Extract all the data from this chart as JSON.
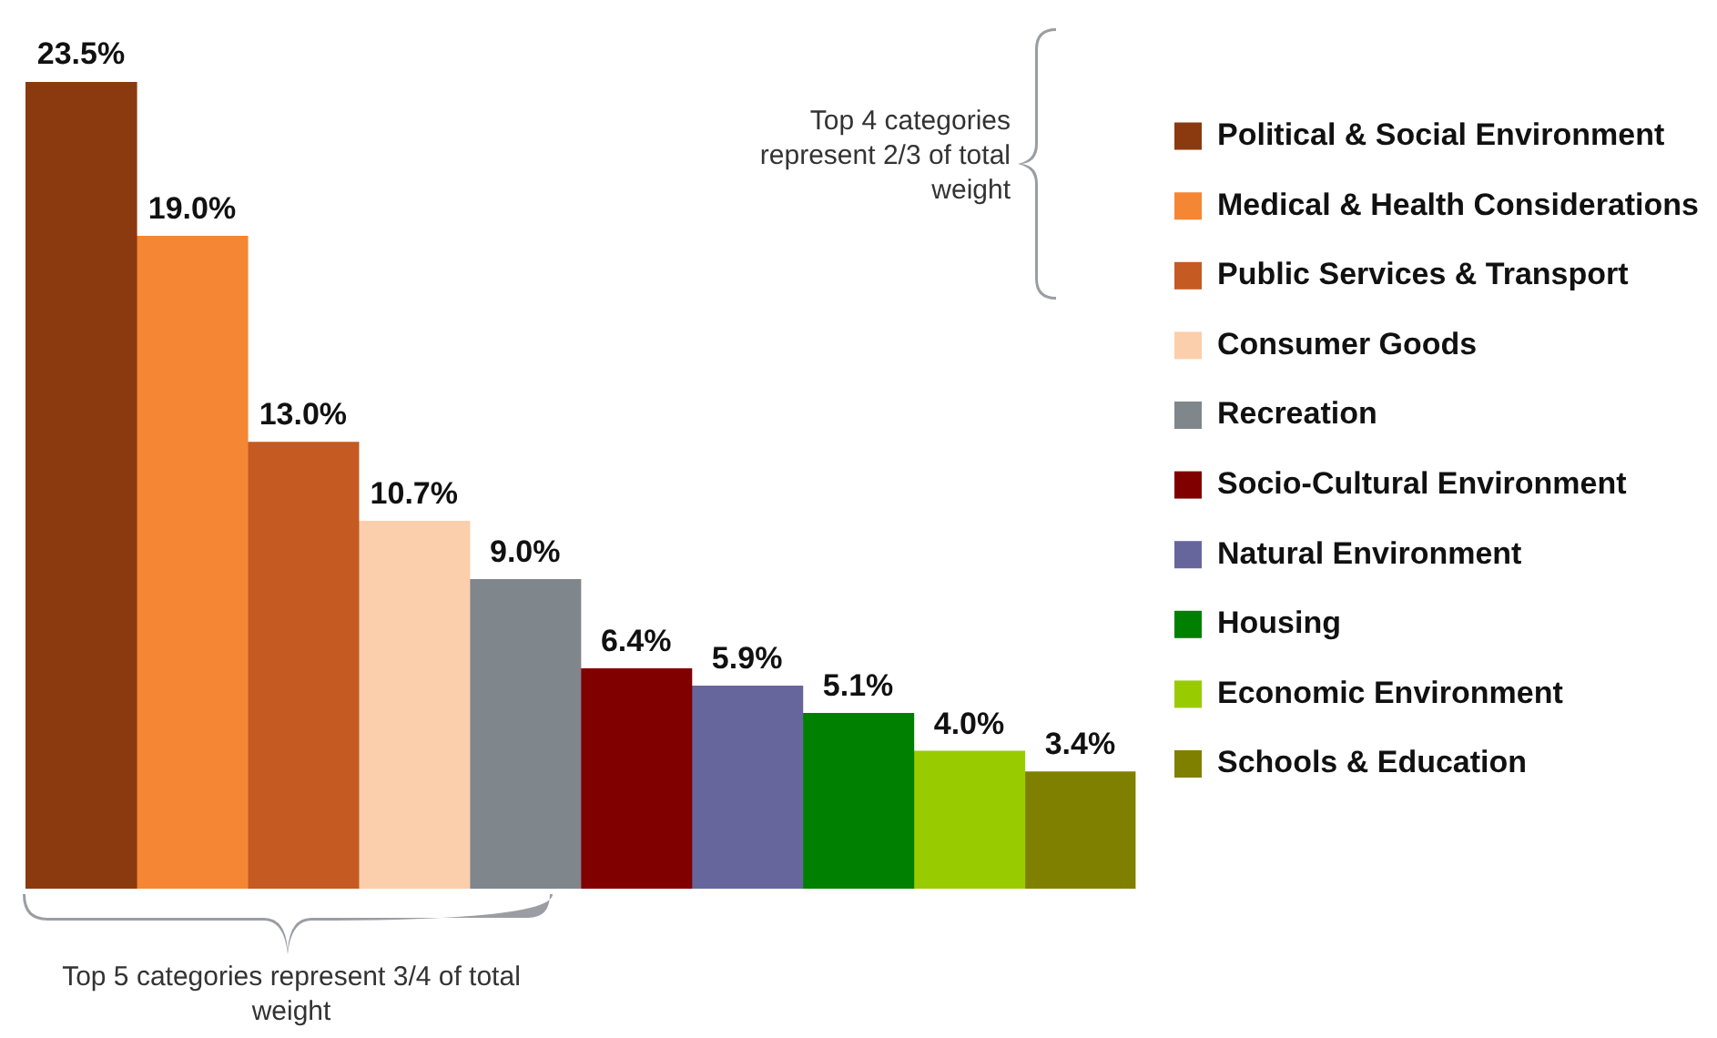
{
  "chart_data": {
    "type": "bar",
    "categories": [
      null
    ],
    "series": [
      {
        "name": "Political & Social Environment",
        "color": "#8b3a0f",
        "values": [
          23.5
        ],
        "value_labels": [
          "23.5%"
        ]
      },
      {
        "name": "Medical & Health Considerations",
        "color": "#f58634",
        "values": [
          19.0
        ],
        "value_labels": [
          "19.0%"
        ]
      },
      {
        "name": "Public Services & Transport",
        "color": "#c55a22",
        "values": [
          13.0
        ],
        "value_labels": [
          "13.0%"
        ]
      },
      {
        "name": "Consumer Goods",
        "color": "#fbcfab",
        "values": [
          10.7
        ],
        "value_labels": [
          "10.7%"
        ]
      },
      {
        "name": "Recreation",
        "color": "#7f868c",
        "values": [
          9.0
        ],
        "value_labels": [
          "9.0%"
        ]
      },
      {
        "name": "Socio-Cultural Environment",
        "color": "#800000",
        "values": [
          6.4
        ],
        "value_labels": [
          "6.4%"
        ]
      },
      {
        "name": "Natural Environment",
        "color": "#67669c",
        "values": [
          5.9
        ],
        "value_labels": [
          "5.9%"
        ]
      },
      {
        "name": "Housing",
        "color": "#008000",
        "values": [
          5.1
        ],
        "value_labels": [
          "5.1%"
        ]
      },
      {
        "name": "Economic Environment",
        "color": "#99cc00",
        "values": [
          4.0
        ],
        "value_labels": [
          "4.0%"
        ]
      },
      {
        "name": "Schools & Education",
        "color": "#808000",
        "values": [
          3.4
        ],
        "value_labels": [
          "3.4%"
        ]
      }
    ],
    "annotations": [
      "Top 4 categories represent 2/3 of total weight",
      "Top 5 categories represent 3/4 of total weight"
    ],
    "legend": "right",
    "tick_labels": false
  }
}
